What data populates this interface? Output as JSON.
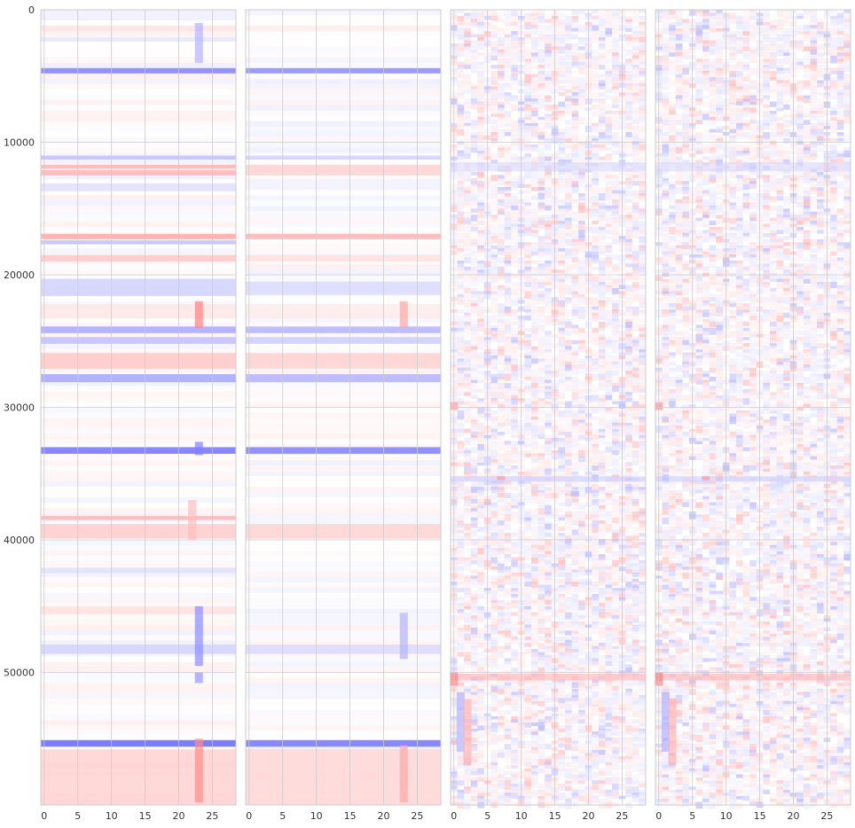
{
  "chart_data": [
    {
      "type": "heatmap",
      "colormap": "bwr",
      "color_min": "#0000ff",
      "color_mid": "#ffffff",
      "color_max": "#ff0000",
      "grid": true,
      "xlim": [
        -0.5,
        28.5
      ],
      "ylim": [
        59999,
        0
      ],
      "xticks": [
        "0",
        "5",
        "10",
        "15",
        "20",
        "25"
      ],
      "yticks": [
        "0",
        "10000",
        "20000",
        "30000",
        "40000",
        "50000"
      ],
      "bands": [
        {
          "y0": 1200,
          "y1": 1600,
          "value": 0.12
        },
        {
          "y0": 2100,
          "y1": 2400,
          "value": -0.1
        },
        {
          "y0": 4400,
          "y1": 4800,
          "value": -0.5
        },
        {
          "y0": 11000,
          "y1": 11300,
          "value": -0.25
        },
        {
          "y0": 11700,
          "y1": 12000,
          "value": 0.3
        },
        {
          "y0": 12100,
          "y1": 12500,
          "value": 0.3
        },
        {
          "y0": 13100,
          "y1": 13700,
          "value": -0.12
        },
        {
          "y0": 16900,
          "y1": 17300,
          "value": 0.35
        },
        {
          "y0": 17400,
          "y1": 17700,
          "value": -0.25
        },
        {
          "y0": 18500,
          "y1": 19000,
          "value": 0.22
        },
        {
          "y0": 20300,
          "y1": 21600,
          "value": -0.18
        },
        {
          "y0": 22200,
          "y1": 23300,
          "value": 0.1
        },
        {
          "y0": 23900,
          "y1": 24400,
          "value": -0.35
        },
        {
          "y0": 24700,
          "y1": 25200,
          "value": -0.25
        },
        {
          "y0": 25900,
          "y1": 27100,
          "value": 0.22
        },
        {
          "y0": 27500,
          "y1": 28100,
          "value": -0.35
        },
        {
          "y0": 33000,
          "y1": 33500,
          "value": -0.55
        },
        {
          "y0": 38200,
          "y1": 38500,
          "value": 0.3
        },
        {
          "y0": 38800,
          "y1": 39900,
          "value": 0.2
        },
        {
          "y0": 42100,
          "y1": 42500,
          "value": -0.12
        },
        {
          "y0": 45000,
          "y1": 45600,
          "value": 0.12
        },
        {
          "y0": 47900,
          "y1": 48600,
          "value": -0.18
        },
        {
          "y0": 55100,
          "y1": 55600,
          "value": -0.6
        },
        {
          "y0": 55800,
          "y1": 59999,
          "value": 0.18
        }
      ],
      "hotspots": [
        {
          "x": 23,
          "y0": 1000,
          "y1": 4000,
          "value": -0.3
        },
        {
          "x": 23,
          "y0": 22000,
          "y1": 24000,
          "value": 0.5
        },
        {
          "x": 23,
          "y0": 32600,
          "y1": 33600,
          "value": -0.5
        },
        {
          "x": 23,
          "y0": 45000,
          "y1": 49500,
          "value": -0.45
        },
        {
          "x": 23,
          "y0": 55000,
          "y1": 59800,
          "value": 0.45
        },
        {
          "x": 23,
          "y0": 50000,
          "y1": 50800,
          "value": -0.4
        },
        {
          "x": 22,
          "y0": 37000,
          "y1": 40000,
          "value": 0.25
        }
      ]
    },
    {
      "type": "heatmap",
      "colormap": "bwr",
      "color_min": "#0000ff",
      "color_mid": "#ffffff",
      "color_max": "#ff0000",
      "grid": true,
      "xlim": [
        -0.5,
        28.5
      ],
      "ylim": [
        59999,
        0
      ],
      "xticks": [
        "0",
        "5",
        "10",
        "15",
        "20",
        "25"
      ],
      "bands": [
        {
          "y0": 1200,
          "y1": 1600,
          "value": 0.08
        },
        {
          "y0": 4400,
          "y1": 4800,
          "value": -0.45
        },
        {
          "y0": 11000,
          "y1": 11300,
          "value": -0.18
        },
        {
          "y0": 11700,
          "y1": 12500,
          "value": 0.18
        },
        {
          "y0": 16900,
          "y1": 17300,
          "value": 0.3
        },
        {
          "y0": 18500,
          "y1": 19000,
          "value": 0.12
        },
        {
          "y0": 20500,
          "y1": 21500,
          "value": -0.15
        },
        {
          "y0": 22200,
          "y1": 23300,
          "value": 0.08
        },
        {
          "y0": 23900,
          "y1": 24400,
          "value": -0.3
        },
        {
          "y0": 24700,
          "y1": 25200,
          "value": -0.2
        },
        {
          "y0": 25900,
          "y1": 27100,
          "value": 0.18
        },
        {
          "y0": 27500,
          "y1": 28100,
          "value": -0.3
        },
        {
          "y0": 33000,
          "y1": 33500,
          "value": -0.5
        },
        {
          "y0": 38800,
          "y1": 39900,
          "value": 0.18
        },
        {
          "y0": 47900,
          "y1": 48600,
          "value": -0.15
        },
        {
          "y0": 55100,
          "y1": 55600,
          "value": -0.55
        },
        {
          "y0": 55800,
          "y1": 59999,
          "value": 0.16
        }
      ],
      "hotspots": [
        {
          "x": 23,
          "y0": 22000,
          "y1": 24000,
          "value": 0.35
        },
        {
          "x": 23,
          "y0": 45500,
          "y1": 49000,
          "value": -0.3
        },
        {
          "x": 23,
          "y0": 55500,
          "y1": 59800,
          "value": 0.35
        }
      ]
    },
    {
      "type": "heatmap",
      "colormap": "bwr",
      "color_min": "#0000ff",
      "color_mid": "#ffffff",
      "color_max": "#ff0000",
      "grid": true,
      "xlim": [
        -0.5,
        28.5
      ],
      "ylim": [
        59999,
        0
      ],
      "xticks": [
        "0",
        "5",
        "10",
        "15",
        "20",
        "25"
      ],
      "bands": [
        {
          "y0": 11500,
          "y1": 12200,
          "value": -0.15
        },
        {
          "y0": 35200,
          "y1": 35600,
          "value": -0.2
        },
        {
          "y0": 50100,
          "y1": 50600,
          "value": 0.3
        }
      ],
      "hotspots": [
        {
          "x": 0,
          "y0": 50000,
          "y1": 51000,
          "value": 0.5
        },
        {
          "x": 1,
          "y0": 51500,
          "y1": 56000,
          "value": -0.3
        },
        {
          "x": 2,
          "y0": 52000,
          "y1": 57000,
          "value": 0.3
        },
        {
          "x": 0,
          "y0": 29600,
          "y1": 30200,
          "value": 0.4
        },
        {
          "x": 18,
          "y0": 36300,
          "y1": 36700,
          "value": -0.3
        },
        {
          "x": 7,
          "y0": 35200,
          "y1": 35500,
          "value": 0.4
        }
      ]
    },
    {
      "type": "heatmap",
      "colormap": "bwr",
      "color_min": "#0000ff",
      "color_mid": "#ffffff",
      "color_max": "#ff0000",
      "grid": true,
      "xlim": [
        -0.5,
        28.5
      ],
      "ylim": [
        59999,
        0
      ],
      "xticks": [
        "0",
        "5",
        "10",
        "15",
        "20",
        "25"
      ],
      "bands": [
        {
          "y0": 11500,
          "y1": 12200,
          "value": -0.15
        },
        {
          "y0": 35200,
          "y1": 35600,
          "value": -0.2
        },
        {
          "y0": 50100,
          "y1": 50600,
          "value": 0.3
        }
      ],
      "hotspots": [
        {
          "x": 0,
          "y0": 50000,
          "y1": 51000,
          "value": 0.5
        },
        {
          "x": 1,
          "y0": 51500,
          "y1": 56000,
          "value": -0.3
        },
        {
          "x": 2,
          "y0": 52000,
          "y1": 57000,
          "value": 0.3
        },
        {
          "x": 0,
          "y0": 29600,
          "y1": 30200,
          "value": 0.4
        },
        {
          "x": 7,
          "y0": 35200,
          "y1": 35500,
          "value": 0.4
        }
      ]
    }
  ]
}
